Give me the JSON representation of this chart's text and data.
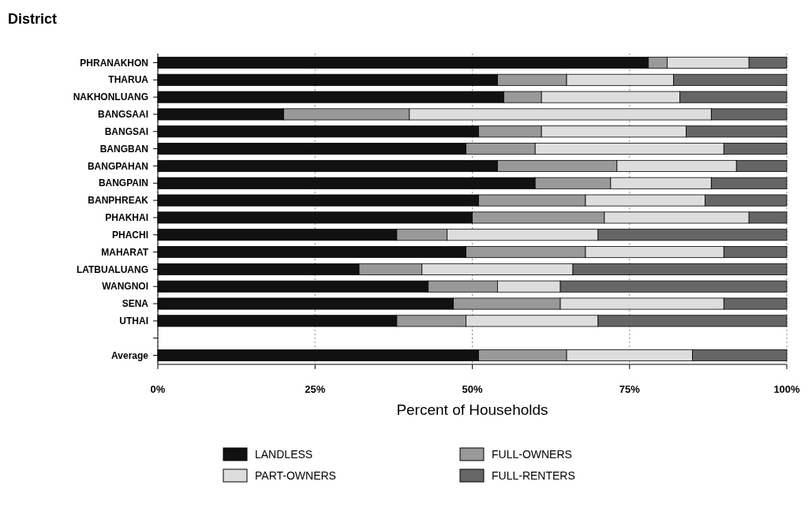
{
  "chart_data": {
    "type": "bar",
    "orientation": "horizontal",
    "stacked": true,
    "ylabel": "District",
    "xlabel": "Percent of Households",
    "categories": [
      "PHRANAKHON",
      "THARUA",
      "NAKHONLUANG",
      "BANGSAAI",
      "BANGSAI",
      "BANGBAN",
      "BANGPAHAN",
      "BANGPAIN",
      "BANPHREAK",
      "PHAKHAI",
      "PHACHI",
      "MAHARAT",
      "LATBUALUANG",
      "WANGNOI",
      "SENA",
      "UTHAI",
      null,
      "Average"
    ],
    "series": [
      {
        "name": "LANDLESS",
        "color": "#111111",
        "values": [
          78,
          54,
          55,
          20,
          51,
          49,
          54,
          60,
          51,
          50,
          38,
          49,
          32,
          43,
          47,
          38,
          null,
          51
        ]
      },
      {
        "name": "FULL-OWNERS",
        "color": "#999999",
        "values": [
          3,
          11,
          6,
          20,
          10,
          11,
          19,
          12,
          17,
          21,
          8,
          19,
          10,
          11,
          17,
          11,
          null,
          14
        ]
      },
      {
        "name": "PART-OWNERS",
        "color": "#dddddd",
        "values": [
          13,
          17,
          22,
          48,
          23,
          30,
          19,
          16,
          19,
          23,
          24,
          22,
          24,
          10,
          26,
          21,
          null,
          20
        ]
      },
      {
        "name": "FULL-RENTERS",
        "color": "#666666",
        "values": [
          6,
          18,
          17,
          12,
          16,
          10,
          8,
          12,
          13,
          6,
          30,
          10,
          34,
          36,
          10,
          30,
          null,
          15
        ]
      }
    ],
    "xlim": [
      0,
      100
    ],
    "xticks": [
      {
        "value": 0,
        "label": "0%"
      },
      {
        "value": 25,
        "label": "25%"
      },
      {
        "value": 50,
        "label": "50%"
      },
      {
        "value": 75,
        "label": "75%"
      },
      {
        "value": 100,
        "label": "100%"
      }
    ],
    "grid": "x",
    "legend": "bottom"
  }
}
